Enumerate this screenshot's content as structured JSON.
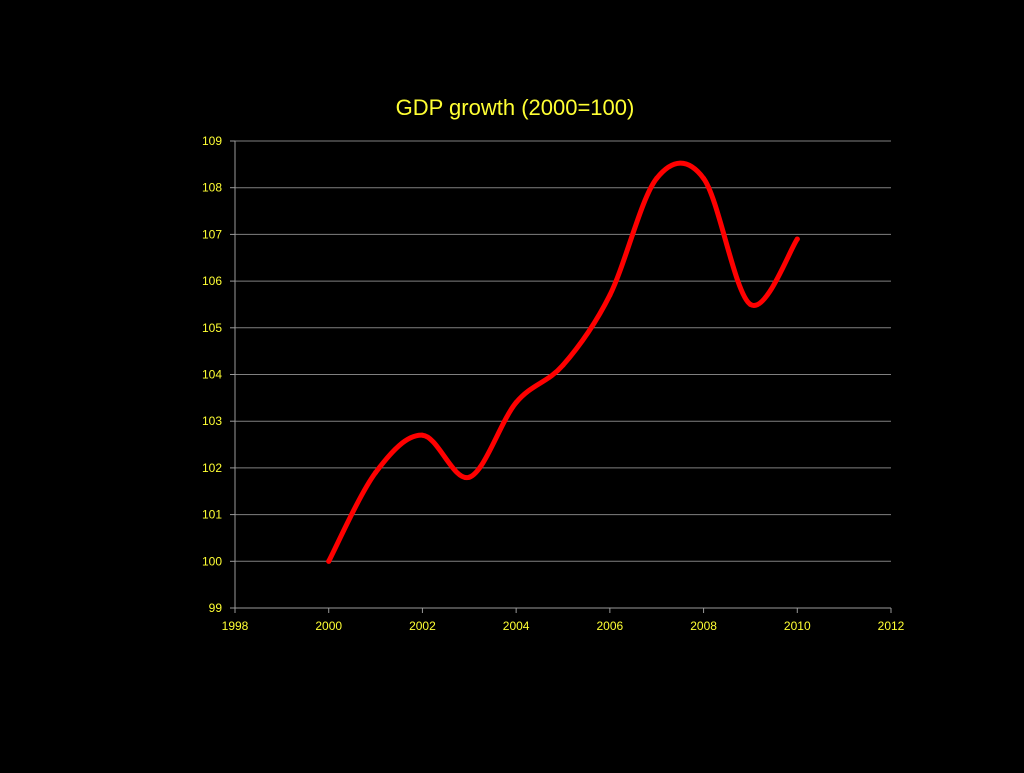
{
  "colors": {
    "background": "#000000",
    "text": "#ffff33",
    "line": "#ff0000",
    "grid": "#808080",
    "axis": "#9a9a9a"
  },
  "chart_data": {
    "type": "line",
    "title": "GDP growth (2000=100)",
    "xlabel": "",
    "ylabel": "",
    "xlim": [
      1998,
      2012
    ],
    "ylim": [
      99,
      109
    ],
    "xticks": [
      1998,
      2000,
      2002,
      2004,
      2006,
      2008,
      2010,
      2012
    ],
    "yticks": [
      99,
      100,
      101,
      102,
      103,
      104,
      105,
      106,
      107,
      108,
      109
    ],
    "grid": "horizontal",
    "smooth": true,
    "legend": "none",
    "series": [
      {
        "x": [
          2000,
          2001,
          2002,
          2003,
          2004,
          2005,
          2006,
          2007,
          2008,
          2009,
          2010
        ],
        "values": [
          100.0,
          101.9,
          102.7,
          101.8,
          103.4,
          104.2,
          105.7,
          108.2,
          108.2,
          105.5,
          106.9
        ]
      }
    ]
  }
}
